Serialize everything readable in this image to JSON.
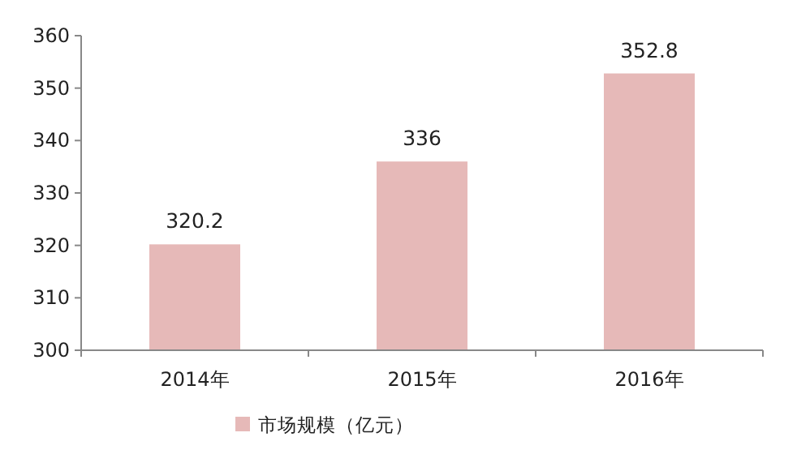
{
  "chart_data": {
    "type": "bar",
    "categories": [
      "2014年",
      "2015年",
      "2016年"
    ],
    "series": [
      {
        "name": "市场规模（亿元）",
        "color": "#e6b9b8",
        "values": [
          320.2,
          336,
          352.8
        ]
      }
    ],
    "ylim": [
      300,
      360
    ],
    "yticks": [
      300,
      310,
      320,
      330,
      340,
      350,
      360
    ],
    "data_labels": true,
    "legend": "bottom"
  }
}
